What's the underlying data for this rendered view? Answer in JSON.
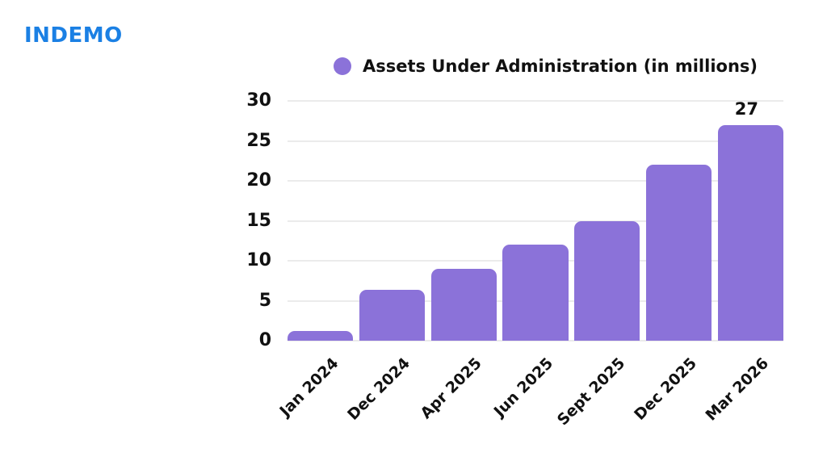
{
  "logo": {
    "text": "INDEMO",
    "color": "#1b80e4"
  },
  "legend": {
    "label": "Assets Under Administration (in millions)",
    "dot_color": "#8b72d9"
  },
  "chart_data": {
    "type": "bar",
    "title": "Assets Under Administration (in millions)",
    "categories": [
      "Jan 2024",
      "Dec 2024",
      "Apr 2025",
      "Jun 2025",
      "Sept 2025",
      "Dec 2025",
      "Mar 2026"
    ],
    "values": [
      1.2,
      6.4,
      9,
      12,
      15,
      22,
      27
    ],
    "data_labels": [
      "",
      "",
      "",
      "",
      "",
      "",
      "27"
    ],
    "xlabel": "",
    "ylabel": "",
    "ylim": [
      0,
      30
    ],
    "yticks": [
      "0",
      "5",
      "10",
      "15",
      "20",
      "25",
      "30"
    ],
    "grid": true,
    "legend_position": "top",
    "bar_color": "#8b72d9",
    "gridline_color": "#ebebeb",
    "text_color": "#111111"
  }
}
